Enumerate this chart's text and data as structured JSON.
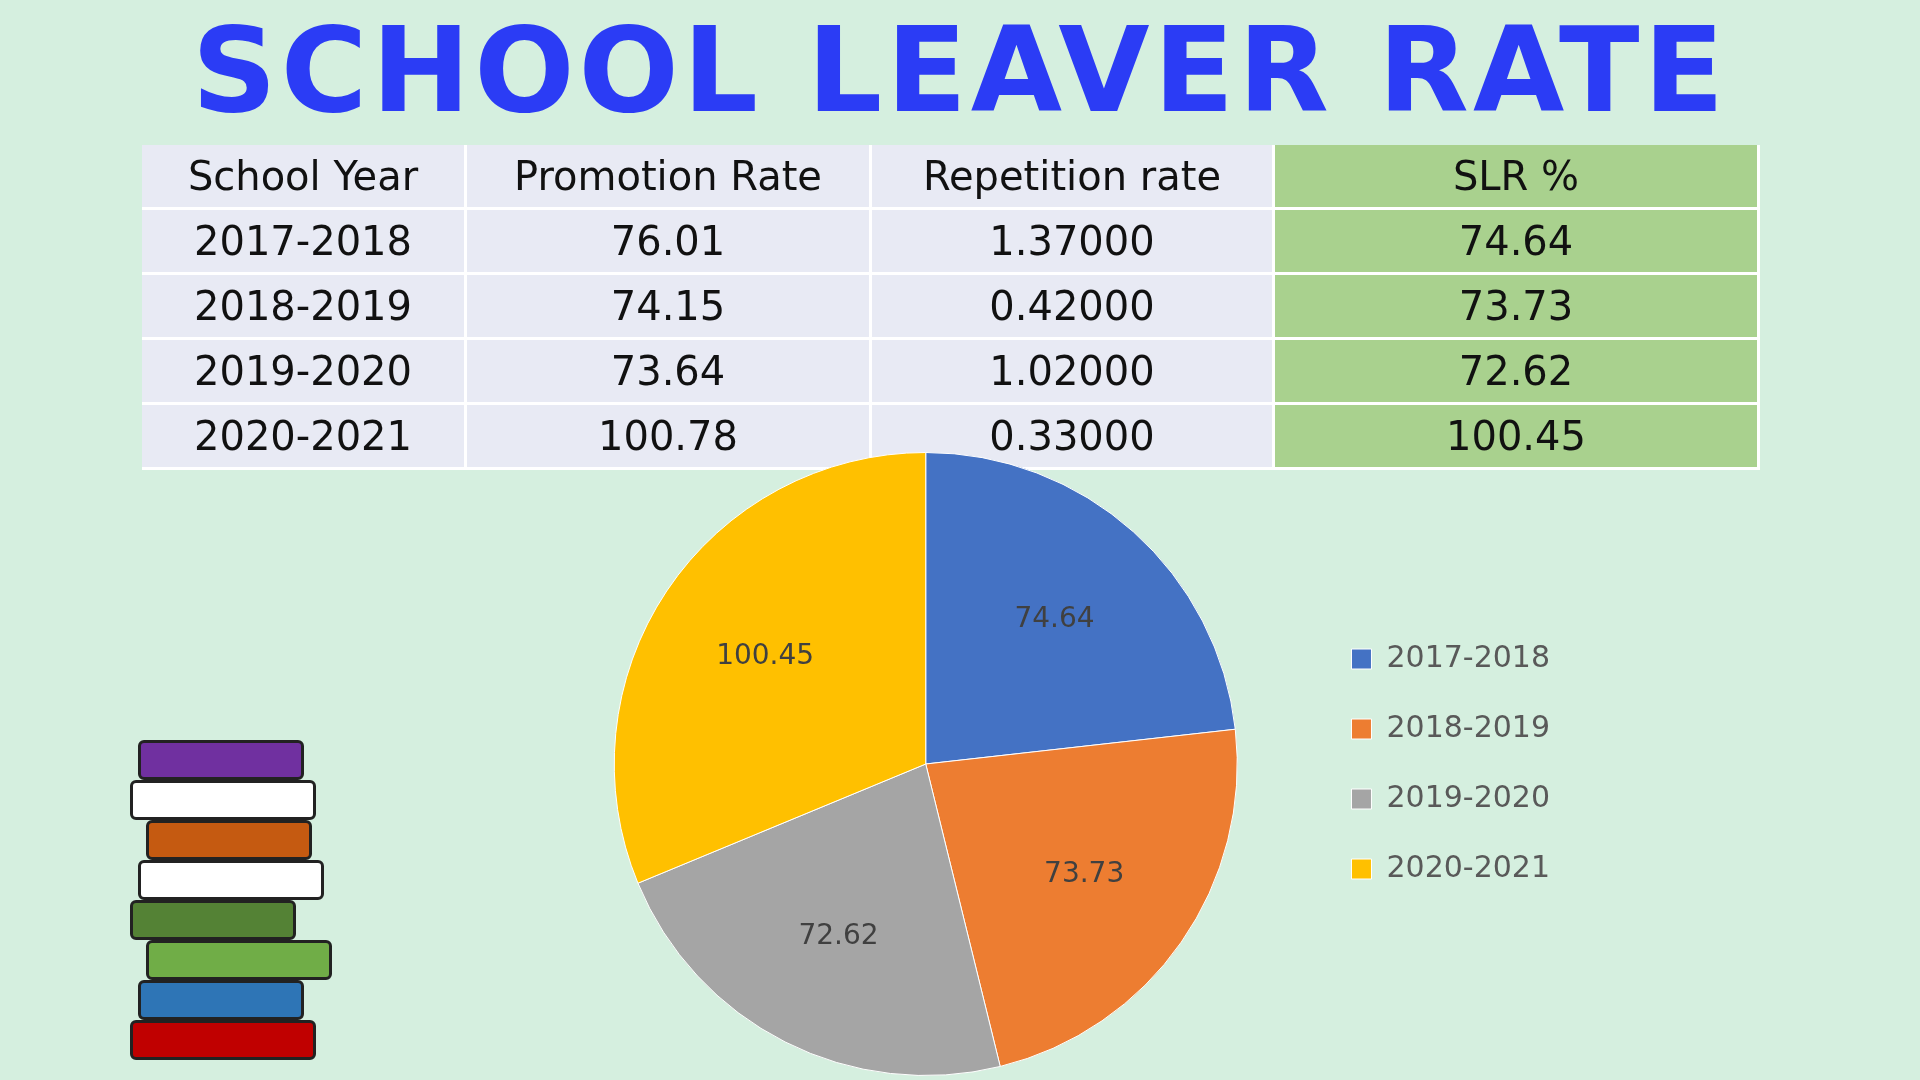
{
  "chart_data": [
    {
      "type": "heatmap",
      "title": "SCHOOL LEAVER RATE",
      "ylabel": "School Year",
      "categories": [
        "Promotion Rate",
        "Repetition rate",
        "SLR %"
      ],
      "y_categories": [
        "2017-2018",
        "2018-2019",
        "2019-2020",
        "2020-2021"
      ],
      "cells": [
        [
          76.01,
          1.37,
          74.64
        ],
        [
          74.15,
          0.42,
          73.73
        ],
        [
          73.64,
          1.02,
          72.62
        ],
        [
          100.78,
          0.33,
          100.45
        ]
      ],
      "cell_labels": [
        [
          "76.01",
          "1.37000",
          "74.64"
        ],
        [
          "74.15",
          "0.42000",
          "73.73"
        ],
        [
          "73.64",
          "1.02000",
          "72.62"
        ],
        [
          "100.78",
          "0.33000",
          "100.45"
        ]
      ]
    },
    {
      "type": "pie",
      "categories": [
        "2017-2018",
        "2018-2019",
        "2019-2020",
        "2020-2021"
      ],
      "values": [
        74.64,
        73.73,
        72.62,
        100.45
      ],
      "colors": [
        "#4472c4",
        "#ed7d31",
        "#a5a5a5",
        "#ffc000"
      ],
      "data_labels": true,
      "legend": "right"
    }
  ]
}
